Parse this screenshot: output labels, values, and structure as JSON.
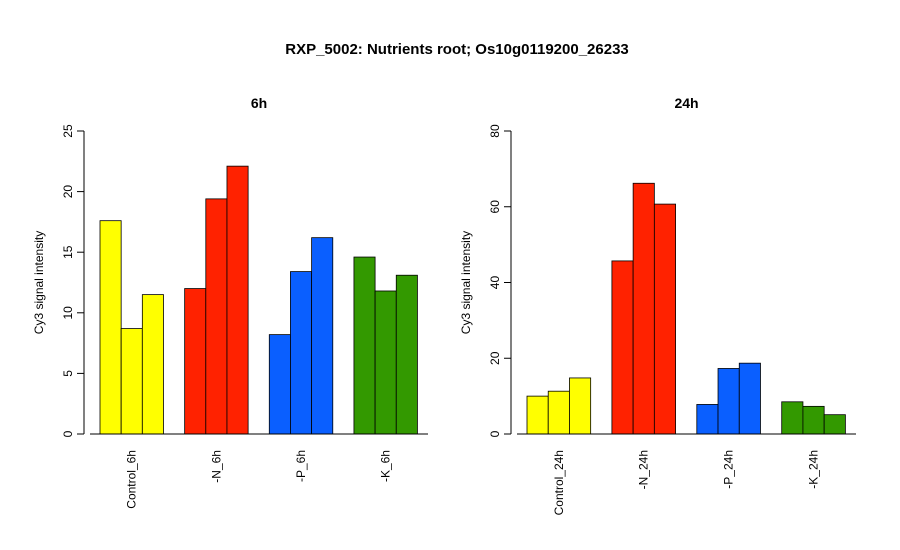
{
  "title": "RXP_5002: Nutrients root; Os10g0119200_26233",
  "chart_data": [
    {
      "type": "bar",
      "title": "6h",
      "ylabel": "Cy3 signal intensity",
      "ylim": [
        0,
        25
      ],
      "yticks": [
        0,
        5,
        10,
        15,
        20,
        25
      ],
      "categories": [
        "Control_6h",
        "-N_6h",
        "-P_6h",
        "-K_6h"
      ],
      "groups": [
        {
          "category": "Control_6h",
          "color": "#ffff00",
          "values": [
            17.6,
            8.7,
            11.5
          ]
        },
        {
          "category": "-N_6h",
          "color": "#ff2200",
          "values": [
            12.0,
            19.4,
            22.1
          ]
        },
        {
          "category": "-P_6h",
          "color": "#0a5fff",
          "values": [
            8.2,
            13.4,
            16.2
          ]
        },
        {
          "category": "-K_6h",
          "color": "#339900",
          "values": [
            14.6,
            11.8,
            13.1
          ]
        }
      ]
    },
    {
      "type": "bar",
      "title": "24h",
      "ylabel": "Cy3 signal intensity",
      "ylim": [
        0,
        80
      ],
      "yticks": [
        0,
        20,
        40,
        60,
        80
      ],
      "categories": [
        "Control_24h",
        "-N_24h",
        "-P_24h",
        "-K_24h"
      ],
      "groups": [
        {
          "category": "Control_24h",
          "color": "#ffff00",
          "values": [
            10.0,
            11.3,
            14.8
          ]
        },
        {
          "category": "-N_24h",
          "color": "#ff2200",
          "values": [
            45.7,
            66.2,
            60.7
          ]
        },
        {
          "category": "-P_24h",
          "color": "#0a5fff",
          "values": [
            7.8,
            17.3,
            18.7
          ]
        },
        {
          "category": "-K_24h",
          "color": "#339900",
          "values": [
            8.5,
            7.3,
            5.1
          ]
        }
      ]
    }
  ]
}
